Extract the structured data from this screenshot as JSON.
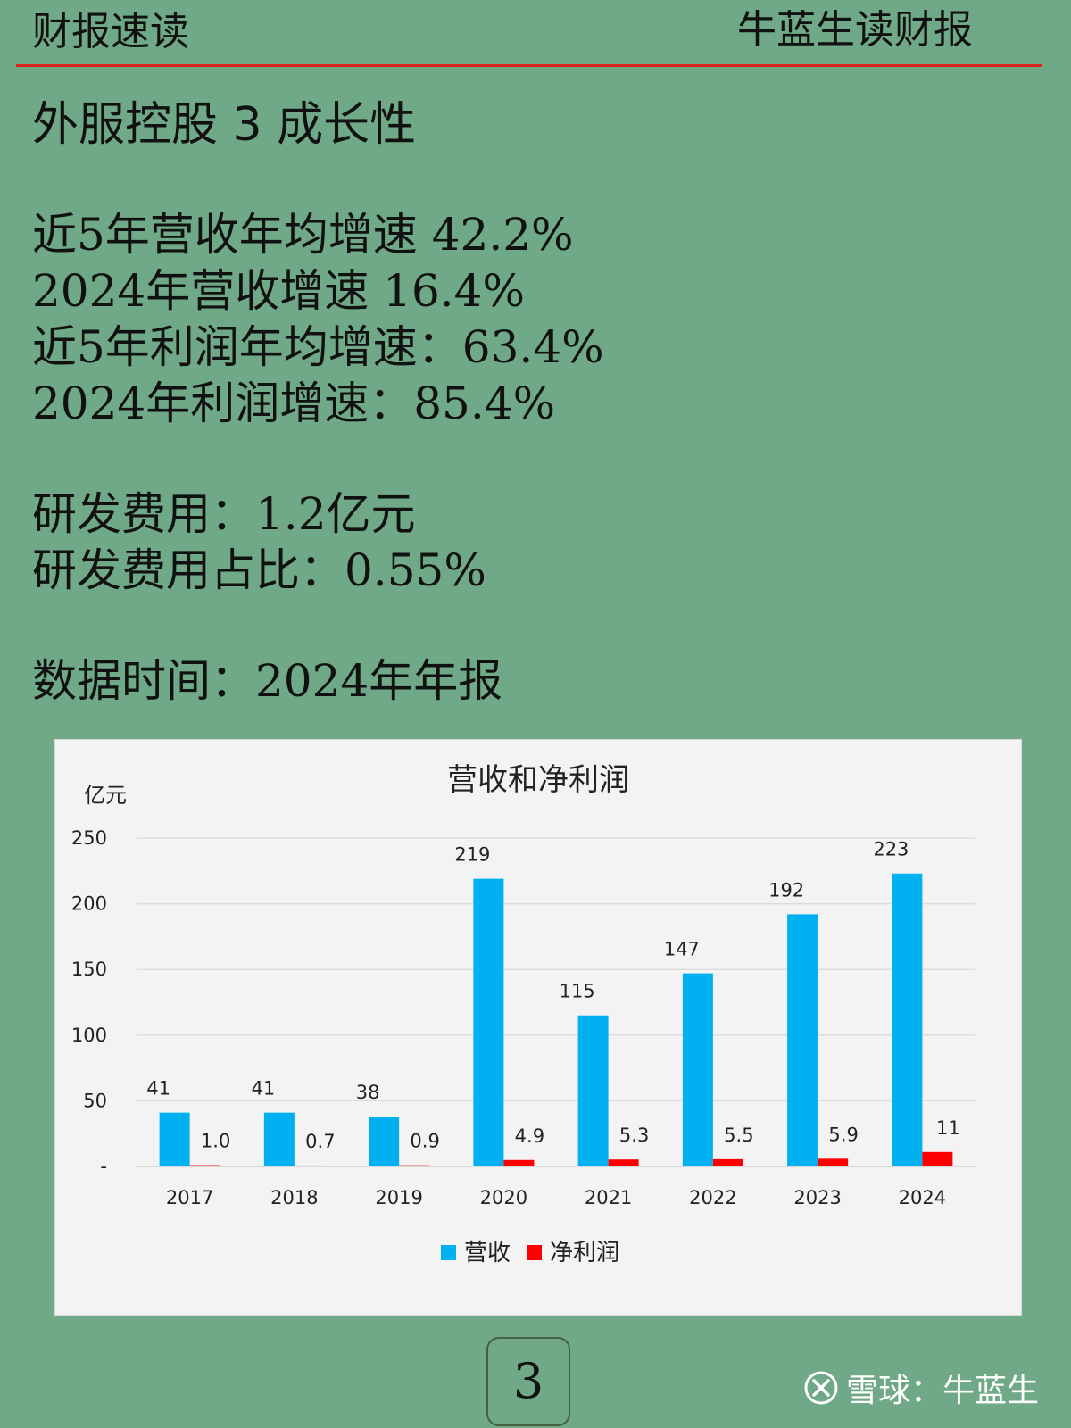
{
  "header": {
    "left": "财报速读",
    "right": "牛蓝生读财报"
  },
  "title": "外服控股 3 成长性",
  "stats": {
    "rev_cagr": "近5年营收年均增速 42.2%",
    "rev_growth": "2024年营收增速 16.4%",
    "profit_cagr": "近5年利润年均增速：63.4%",
    "profit_growth": "2024年利润增速：85.4%",
    "rd_expense": "研发费用：1.2亿元",
    "rd_ratio": "研发费用占比：0.55%",
    "data_time": "数据时间：2024年年报"
  },
  "chart_data": {
    "type": "bar",
    "title": "营收和净利润",
    "ylabel": "亿元",
    "ylim": [
      0,
      250
    ],
    "yticks": [
      0,
      50,
      100,
      150,
      200,
      250
    ],
    "ytick_labels": [
      "-",
      "50",
      "100",
      "150",
      "200",
      "250"
    ],
    "grid": true,
    "legend_position": "bottom",
    "categories": [
      "2017",
      "2018",
      "2019",
      "2020",
      "2021",
      "2022",
      "2023",
      "2024"
    ],
    "series": [
      {
        "name": "营收",
        "color": "#00b0f0",
        "values": [
          41,
          41,
          38,
          219,
          115,
          147,
          192,
          223
        ],
        "labels": [
          "41",
          "41",
          "38",
          "219",
          "115",
          "147",
          "192",
          "223"
        ]
      },
      {
        "name": "净利润",
        "color": "#ff0000",
        "values": [
          1.0,
          0.7,
          0.9,
          4.9,
          5.3,
          5.5,
          5.9,
          11
        ],
        "labels": [
          "1.0",
          "0.7",
          "0.9",
          "4.9",
          "5.3",
          "5.5",
          "5.9",
          "11"
        ]
      }
    ]
  },
  "page_number": "3",
  "watermark": {
    "text": "雪球：牛蓝生",
    "icon": "xueqiu-logo-icon"
  }
}
